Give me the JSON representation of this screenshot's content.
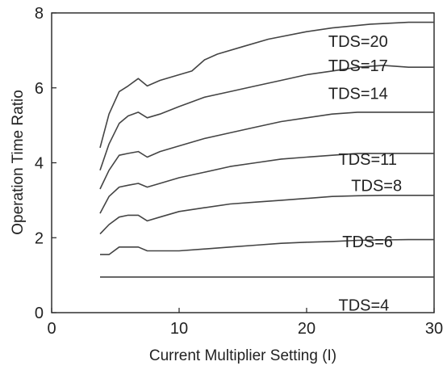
{
  "chart_data": {
    "type": "line",
    "title": "",
    "xlabel": "Current Multiplier Setting (I)",
    "ylabel": "Operation Time Ratio",
    "xlim": [
      0,
      30
    ],
    "ylim": [
      0,
      8
    ],
    "xticks": [
      0,
      10,
      20,
      30
    ],
    "yticks": [
      0,
      2,
      4,
      6,
      8
    ],
    "grid": false,
    "legend": "inline labels at right",
    "line_color": "#444444",
    "series": [
      {
        "name": "TDS=20",
        "x": [
          3.8,
          4.5,
          5.3,
          6.0,
          6.8,
          7.5,
          8.5,
          10,
          11,
          12,
          13,
          15,
          17,
          20,
          22,
          25,
          28,
          30
        ],
        "y": [
          4.4,
          5.3,
          5.9,
          6.05,
          6.25,
          6.05,
          6.2,
          6.35,
          6.45,
          6.75,
          6.9,
          7.1,
          7.3,
          7.5,
          7.6,
          7.7,
          7.75,
          7.75
        ]
      },
      {
        "name": "TDS=17",
        "x": [
          3.8,
          4.5,
          5.3,
          6.0,
          6.8,
          7.5,
          8.5,
          10,
          12,
          14,
          16,
          18,
          20,
          22,
          24,
          26,
          28,
          30
        ],
        "y": [
          3.8,
          4.5,
          5.05,
          5.25,
          5.35,
          5.2,
          5.3,
          5.5,
          5.75,
          5.9,
          6.05,
          6.2,
          6.35,
          6.45,
          6.55,
          6.6,
          6.55,
          6.55
        ]
      },
      {
        "name": "TDS=14",
        "x": [
          3.8,
          4.5,
          5.3,
          6.0,
          6.8,
          7.5,
          8.5,
          10,
          12,
          14,
          16,
          18,
          20,
          22,
          24,
          26,
          28,
          30
        ],
        "y": [
          3.3,
          3.8,
          4.2,
          4.25,
          4.3,
          4.15,
          4.3,
          4.45,
          4.65,
          4.8,
          4.95,
          5.1,
          5.2,
          5.3,
          5.35,
          5.35,
          5.35,
          5.35
        ]
      },
      {
        "name": "TDS=11",
        "x": [
          3.8,
          4.5,
          5.3,
          6.0,
          6.8,
          7.5,
          8.5,
          10,
          12,
          14,
          16,
          18,
          20,
          22,
          24,
          26,
          28,
          30
        ],
        "y": [
          2.65,
          3.1,
          3.35,
          3.4,
          3.45,
          3.35,
          3.45,
          3.6,
          3.75,
          3.9,
          4.0,
          4.1,
          4.15,
          4.2,
          4.25,
          4.25,
          4.25,
          4.25
        ]
      },
      {
        "name": "TDS=8",
        "x": [
          3.8,
          4.5,
          5.3,
          6.0,
          6.8,
          7.5,
          8.5,
          10,
          12,
          14,
          16,
          18,
          20,
          22,
          24,
          26,
          28,
          30
        ],
        "y": [
          2.1,
          2.35,
          2.55,
          2.6,
          2.6,
          2.45,
          2.55,
          2.7,
          2.8,
          2.9,
          2.95,
          3.0,
          3.05,
          3.1,
          3.12,
          3.13,
          3.13,
          3.13
        ]
      },
      {
        "name": "TDS=6",
        "x": [
          3.8,
          4.5,
          5.3,
          6.0,
          6.8,
          7.5,
          8.5,
          10,
          12,
          14,
          16,
          18,
          20,
          22,
          24,
          26,
          28,
          30
        ],
        "y": [
          1.55,
          1.55,
          1.75,
          1.75,
          1.75,
          1.65,
          1.65,
          1.65,
          1.7,
          1.75,
          1.8,
          1.85,
          1.88,
          1.9,
          1.93,
          1.94,
          1.95,
          1.95
        ]
      },
      {
        "name": "TDS=4",
        "x": [
          3.8,
          30
        ],
        "y": [
          0.95,
          0.95
        ]
      }
    ],
    "series_labels": [
      {
        "text": "TDS=20",
        "x": 21.7,
        "y": 7.25
      },
      {
        "text": "TDS=17",
        "x": 21.7,
        "y": 6.6
      },
      {
        "text": "TDS=14",
        "x": 21.7,
        "y": 5.85
      },
      {
        "text": "TDS=11",
        "x": 22.5,
        "y": 4.1
      },
      {
        "text": "TDS=8",
        "x": 23.5,
        "y": 3.4
      },
      {
        "text": "TDS=6",
        "x": 22.8,
        "y": 1.9
      },
      {
        "text": "TDS=4",
        "x": 22.5,
        "y": 0.2
      }
    ]
  }
}
